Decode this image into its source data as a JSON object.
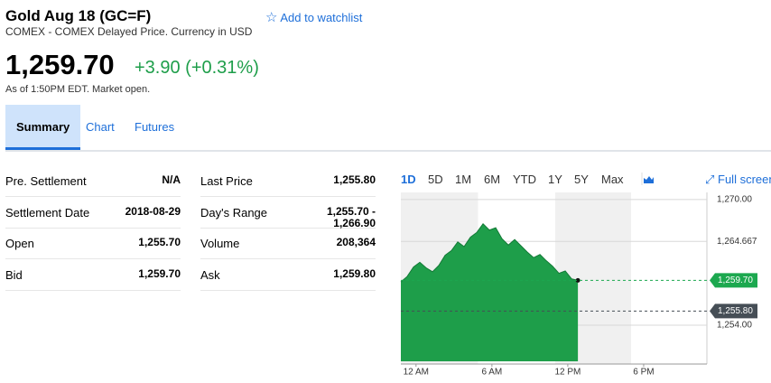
{
  "header": {
    "title": "Gold Aug 18 (GC=F)",
    "watchlist": "Add to watchlist",
    "subtitle": "COMEX - COMEX Delayed Price. Currency in USD"
  },
  "quote": {
    "price": "1,259.70",
    "change": "+3.90 (+0.31%)",
    "note": "As of 1:50PM EDT. Market open."
  },
  "tabs": [
    "Summary",
    "Chart",
    "Futures"
  ],
  "stats": {
    "rows": [
      [
        "Pre. Settlement",
        "N/A",
        "Last Price",
        "1,255.80"
      ],
      [
        "Settlement Date",
        "2018-08-29",
        "Day's Range",
        "1,255.70 - 1,266.90"
      ],
      [
        "Open",
        "1,255.70",
        "Volume",
        "208,364"
      ],
      [
        "Bid",
        "1,259.70",
        "Ask",
        "1,259.80"
      ]
    ]
  },
  "chart_controls": {
    "ranges": [
      "1D",
      "5D",
      "1M",
      "6M",
      "YTD",
      "1Y",
      "5Y",
      "Max"
    ],
    "fullscreen": "Full screen"
  },
  "chart_data": {
    "type": "area",
    "color": "#1e9e4a",
    "x": [
      -1.2,
      -0.7,
      -0.2,
      0.3,
      0.8,
      1.3,
      1.8,
      2.3,
      2.8,
      3.3,
      3.8,
      4.3,
      4.8,
      5.3,
      5.8,
      6.3,
      6.8,
      7.3,
      7.8,
      8.3,
      8.8,
      9.3,
      9.8,
      10.3,
      10.8,
      11.3,
      11.8,
      12.3,
      12.8
    ],
    "values": [
      1259.5,
      1260.2,
      1261.4,
      1262.0,
      1261.3,
      1260.8,
      1261.6,
      1262.9,
      1263.5,
      1264.6,
      1264.0,
      1265.2,
      1265.8,
      1266.9,
      1266.1,
      1266.4,
      1265.0,
      1264.2,
      1264.9,
      1264.1,
      1263.3,
      1262.6,
      1263.0,
      1262.2,
      1261.5,
      1260.6,
      1260.9,
      1259.9,
      1259.7
    ],
    "xlim": [
      -1.2,
      23
    ],
    "xticks": [
      {
        "value": 0,
        "label": "12 AM"
      },
      {
        "value": 6,
        "label": "6 AM"
      },
      {
        "value": 12,
        "label": "12 PM"
      },
      {
        "value": 18,
        "label": "6 PM"
      }
    ],
    "ylim": [
      1249.4,
      1270.9
    ],
    "yticks": [
      {
        "value": 1270,
        "label": "1,270.00"
      },
      {
        "value": 1264.667,
        "label": "1,264.667"
      },
      {
        "value": 1254,
        "label": "1,254.00"
      }
    ],
    "grid": true,
    "shaded_ranges": [
      [
        -1.2,
        4.9
      ],
      [
        11,
        17
      ]
    ],
    "markers": [
      {
        "label": "1,259.70",
        "value": 1259.7,
        "color": "#1ca84f"
      },
      {
        "label": "1,255.80",
        "value": 1255.8,
        "color": "#464e56"
      }
    ]
  }
}
